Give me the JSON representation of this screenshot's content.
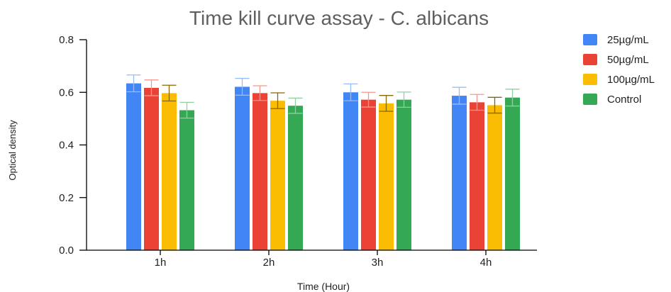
{
  "chart_data": {
    "type": "bar",
    "title": "Time kill curve assay - C. albicans",
    "xlabel": "Time (Hour)",
    "ylabel": "Optical density",
    "categories": [
      "1h",
      "2h",
      "3h",
      "4h"
    ],
    "ylim": [
      0,
      0.8
    ],
    "yticks": [
      0.0,
      0.2,
      0.4,
      0.6,
      0.8
    ],
    "ytick_labels": [
      "0.0",
      "0.2",
      "0.4",
      "0.6",
      "0.8"
    ],
    "legend_position": "top-right",
    "grid": false,
    "series": [
      {
        "name": "25µg/mL",
        "color": "#4285F4",
        "values": [
          0.634,
          0.621,
          0.6,
          0.587
        ],
        "errors": [
          0.032,
          0.032,
          0.032,
          0.032
        ]
      },
      {
        "name": "50µg/mL",
        "color": "#EA4335",
        "values": [
          0.617,
          0.597,
          0.572,
          0.562
        ],
        "errors": [
          0.03,
          0.028,
          0.028,
          0.03
        ]
      },
      {
        "name": "100µg/mL",
        "color": "#FBBC04",
        "values": [
          0.597,
          0.568,
          0.558,
          0.551
        ],
        "errors": [
          0.03,
          0.03,
          0.03,
          0.03
        ]
      },
      {
        "name": "Control",
        "color": "#34A853",
        "values": [
          0.532,
          0.549,
          0.572,
          0.58
        ],
        "errors": [
          0.03,
          0.029,
          0.029,
          0.032
        ]
      }
    ]
  }
}
